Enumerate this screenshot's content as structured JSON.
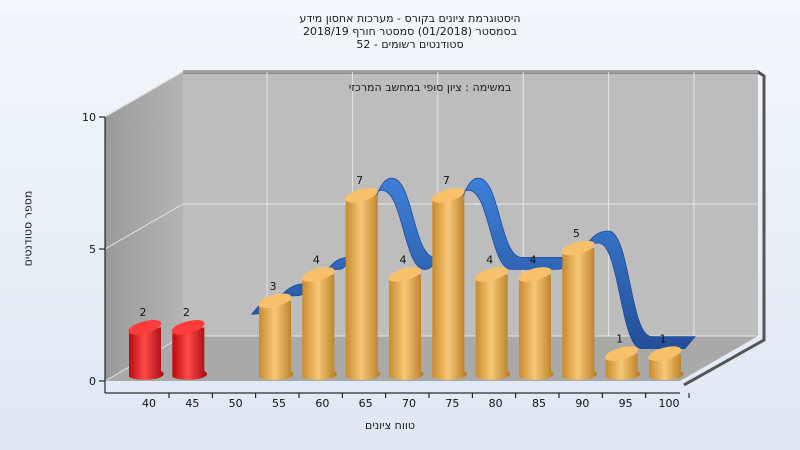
{
  "header": {
    "line1": "היסטוגרמת ציונים בקורס - מערכות אחסון מידע",
    "line2": "בסמסטר  (01/2018)  סמסטר חורף 2018/19",
    "line3": "סטודנטים רשומים - 52"
  },
  "chart_data": {
    "type": "bar",
    "inner_title": "במשימה : ציון סופי במחשב המרכזי",
    "xlabel": "טווח ציונים",
    "ylabel": "מספר סטודנטים",
    "ylim": [
      0,
      10
    ],
    "yticks": [
      0,
      5,
      10
    ],
    "categories": [
      "40",
      "45",
      "50",
      "55",
      "60",
      "65",
      "70",
      "75",
      "80",
      "85",
      "90",
      "95",
      "100"
    ],
    "values": [
      2,
      2,
      0,
      3,
      4,
      7,
      4,
      7,
      4,
      4,
      5,
      1,
      1
    ],
    "bar_colors": [
      "#e8141a",
      "#e8141a",
      "#f3b358",
      "#f3b358",
      "#f3b358",
      "#f3b358",
      "#f3b358",
      "#f3b358",
      "#f3b358",
      "#f3b358",
      "#f3b358",
      "#f3b358",
      "#f3b358"
    ],
    "grid": true,
    "legend": "none",
    "series_curve_color": "#3a73c8"
  }
}
